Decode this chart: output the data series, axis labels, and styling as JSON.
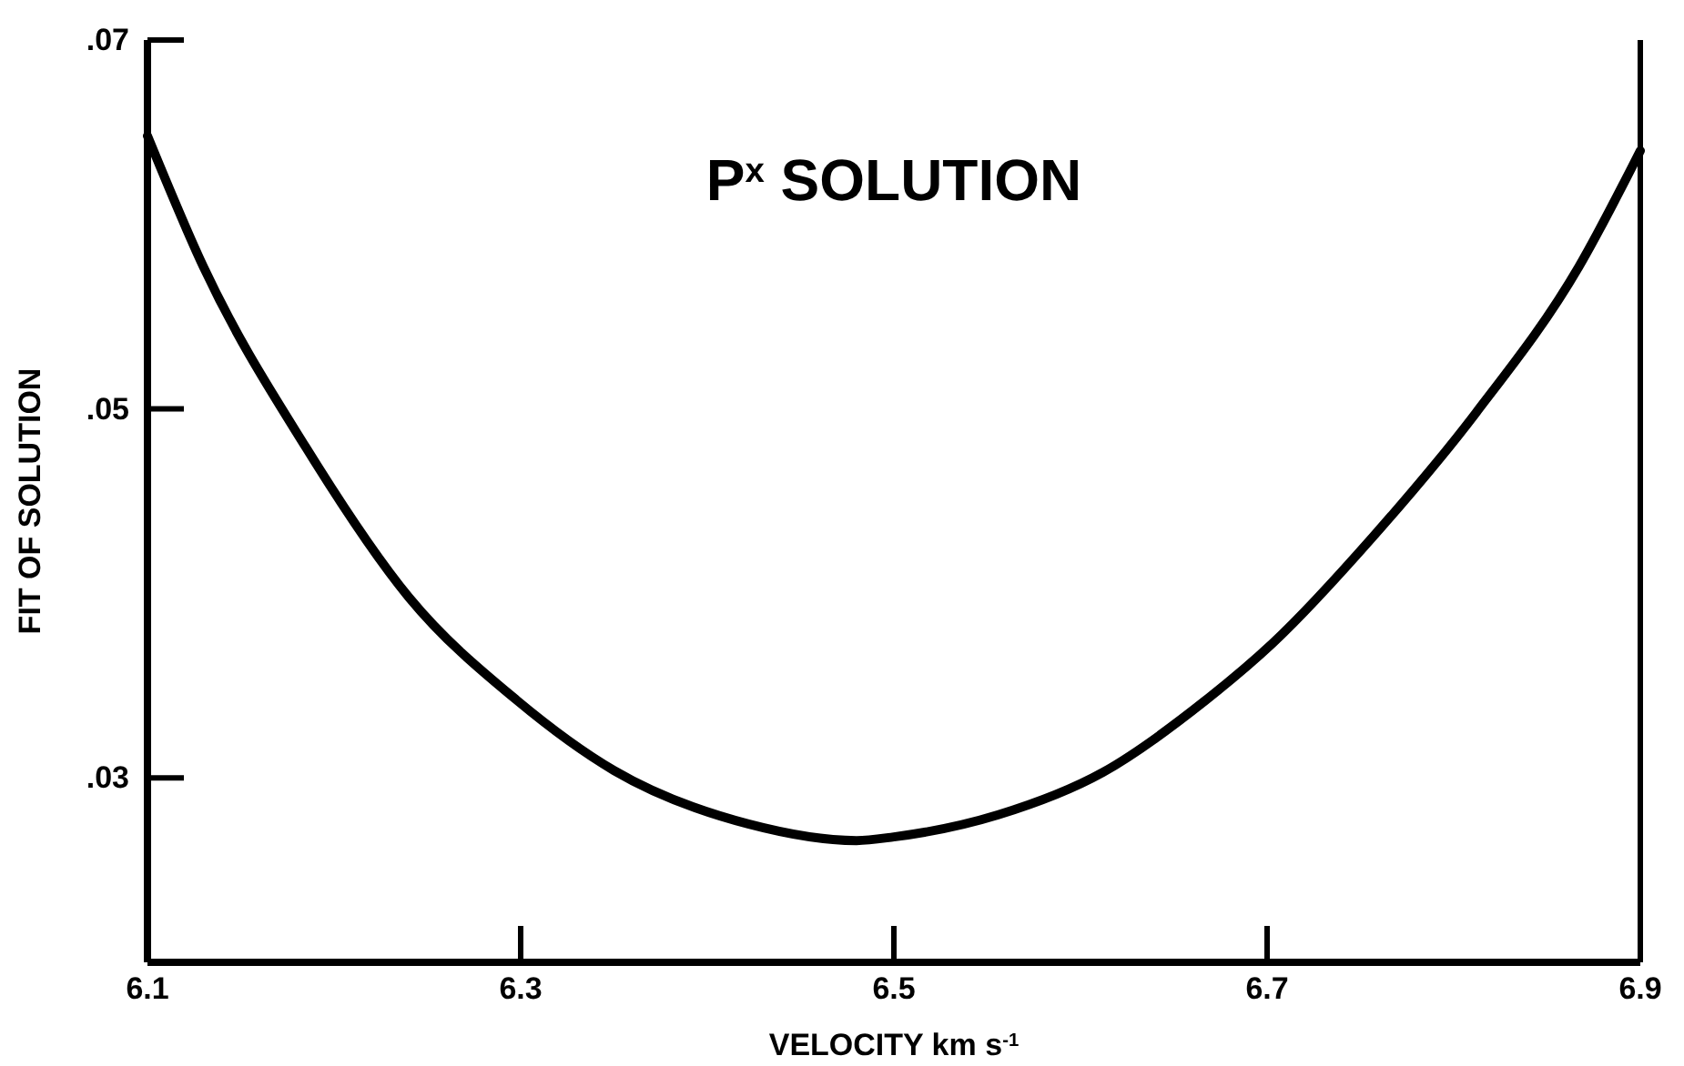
{
  "chart_data": {
    "type": "line",
    "title": "P$^{x}$ SOLUTION",
    "xlabel": "VELOCITY km s$^{-1}$",
    "ylabel": "FIT OF SOLUTION",
    "xlim": [
      6.1,
      6.9
    ],
    "xticks": [
      6.1,
      6.3,
      6.5,
      6.7,
      6.9
    ],
    "ylim": [
      0.02,
      0.07
    ],
    "yticks": [
      {
        "value": 0.03,
        "label": ".03"
      },
      {
        "value": 0.05,
        "label": ".05"
      },
      {
        "value": 0.07,
        "label": ".07"
      }
    ],
    "marker": "none",
    "line_style": "solid",
    "series": [
      {
        "color": "#000000",
        "x": [
          6.1,
          6.13,
          6.185,
          6.24,
          6.298,
          6.35,
          6.422,
          6.48,
          6.5,
          6.556,
          6.612,
          6.667,
          6.703,
          6.757,
          6.812,
          6.867,
          6.9
        ],
        "values": [
          0.0648,
          0.0577,
          0.0479,
          0.0398,
          0.0342,
          0.0304,
          0.0275,
          0.0266,
          0.0268,
          0.028,
          0.0303,
          0.0342,
          0.0373,
          0.0431,
          0.0498,
          0.0577,
          0.064
        ]
      }
    ]
  }
}
